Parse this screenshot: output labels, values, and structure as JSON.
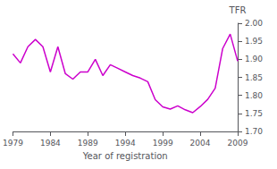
{
  "chart_data": {
    "type": "line",
    "x": [
      1979,
      1980,
      1981,
      1982,
      1983,
      1984,
      1985,
      1986,
      1987,
      1988,
      1989,
      1990,
      1991,
      1992,
      1993,
      1994,
      1995,
      1996,
      1997,
      1998,
      1999,
      2000,
      2001,
      2002,
      2003,
      2004,
      2005,
      2006,
      2007,
      2008,
      2009
    ],
    "values": [
      1.915,
      1.89,
      1.935,
      1.955,
      1.935,
      1.865,
      1.935,
      1.86,
      1.845,
      1.865,
      1.865,
      1.9,
      1.855,
      1.885,
      1.875,
      1.865,
      1.855,
      1.848,
      1.838,
      1.788,
      1.768,
      1.762,
      1.771,
      1.76,
      1.752,
      1.769,
      1.789,
      1.82,
      1.93,
      1.97,
      1.895
    ],
    "color": "#cc00cc",
    "xlabel": "Year of registration",
    "ylabel": "TFR",
    "xlim": [
      1979,
      2009
    ],
    "xticks": [
      1979,
      1984,
      1989,
      1994,
      1999,
      2004,
      2009
    ],
    "ylim": [
      1.7,
      2.0
    ],
    "yticks": [
      {
        "value": 1.7,
        "label": "1.70"
      },
      1.75,
      {
        "value": 1.8,
        "label": "1.80"
      },
      1.85,
      {
        "value": 1.9,
        "label": "1.90"
      },
      1.95,
      {
        "value": 2.0,
        "label": "2.00"
      }
    ],
    "grid": false
  }
}
